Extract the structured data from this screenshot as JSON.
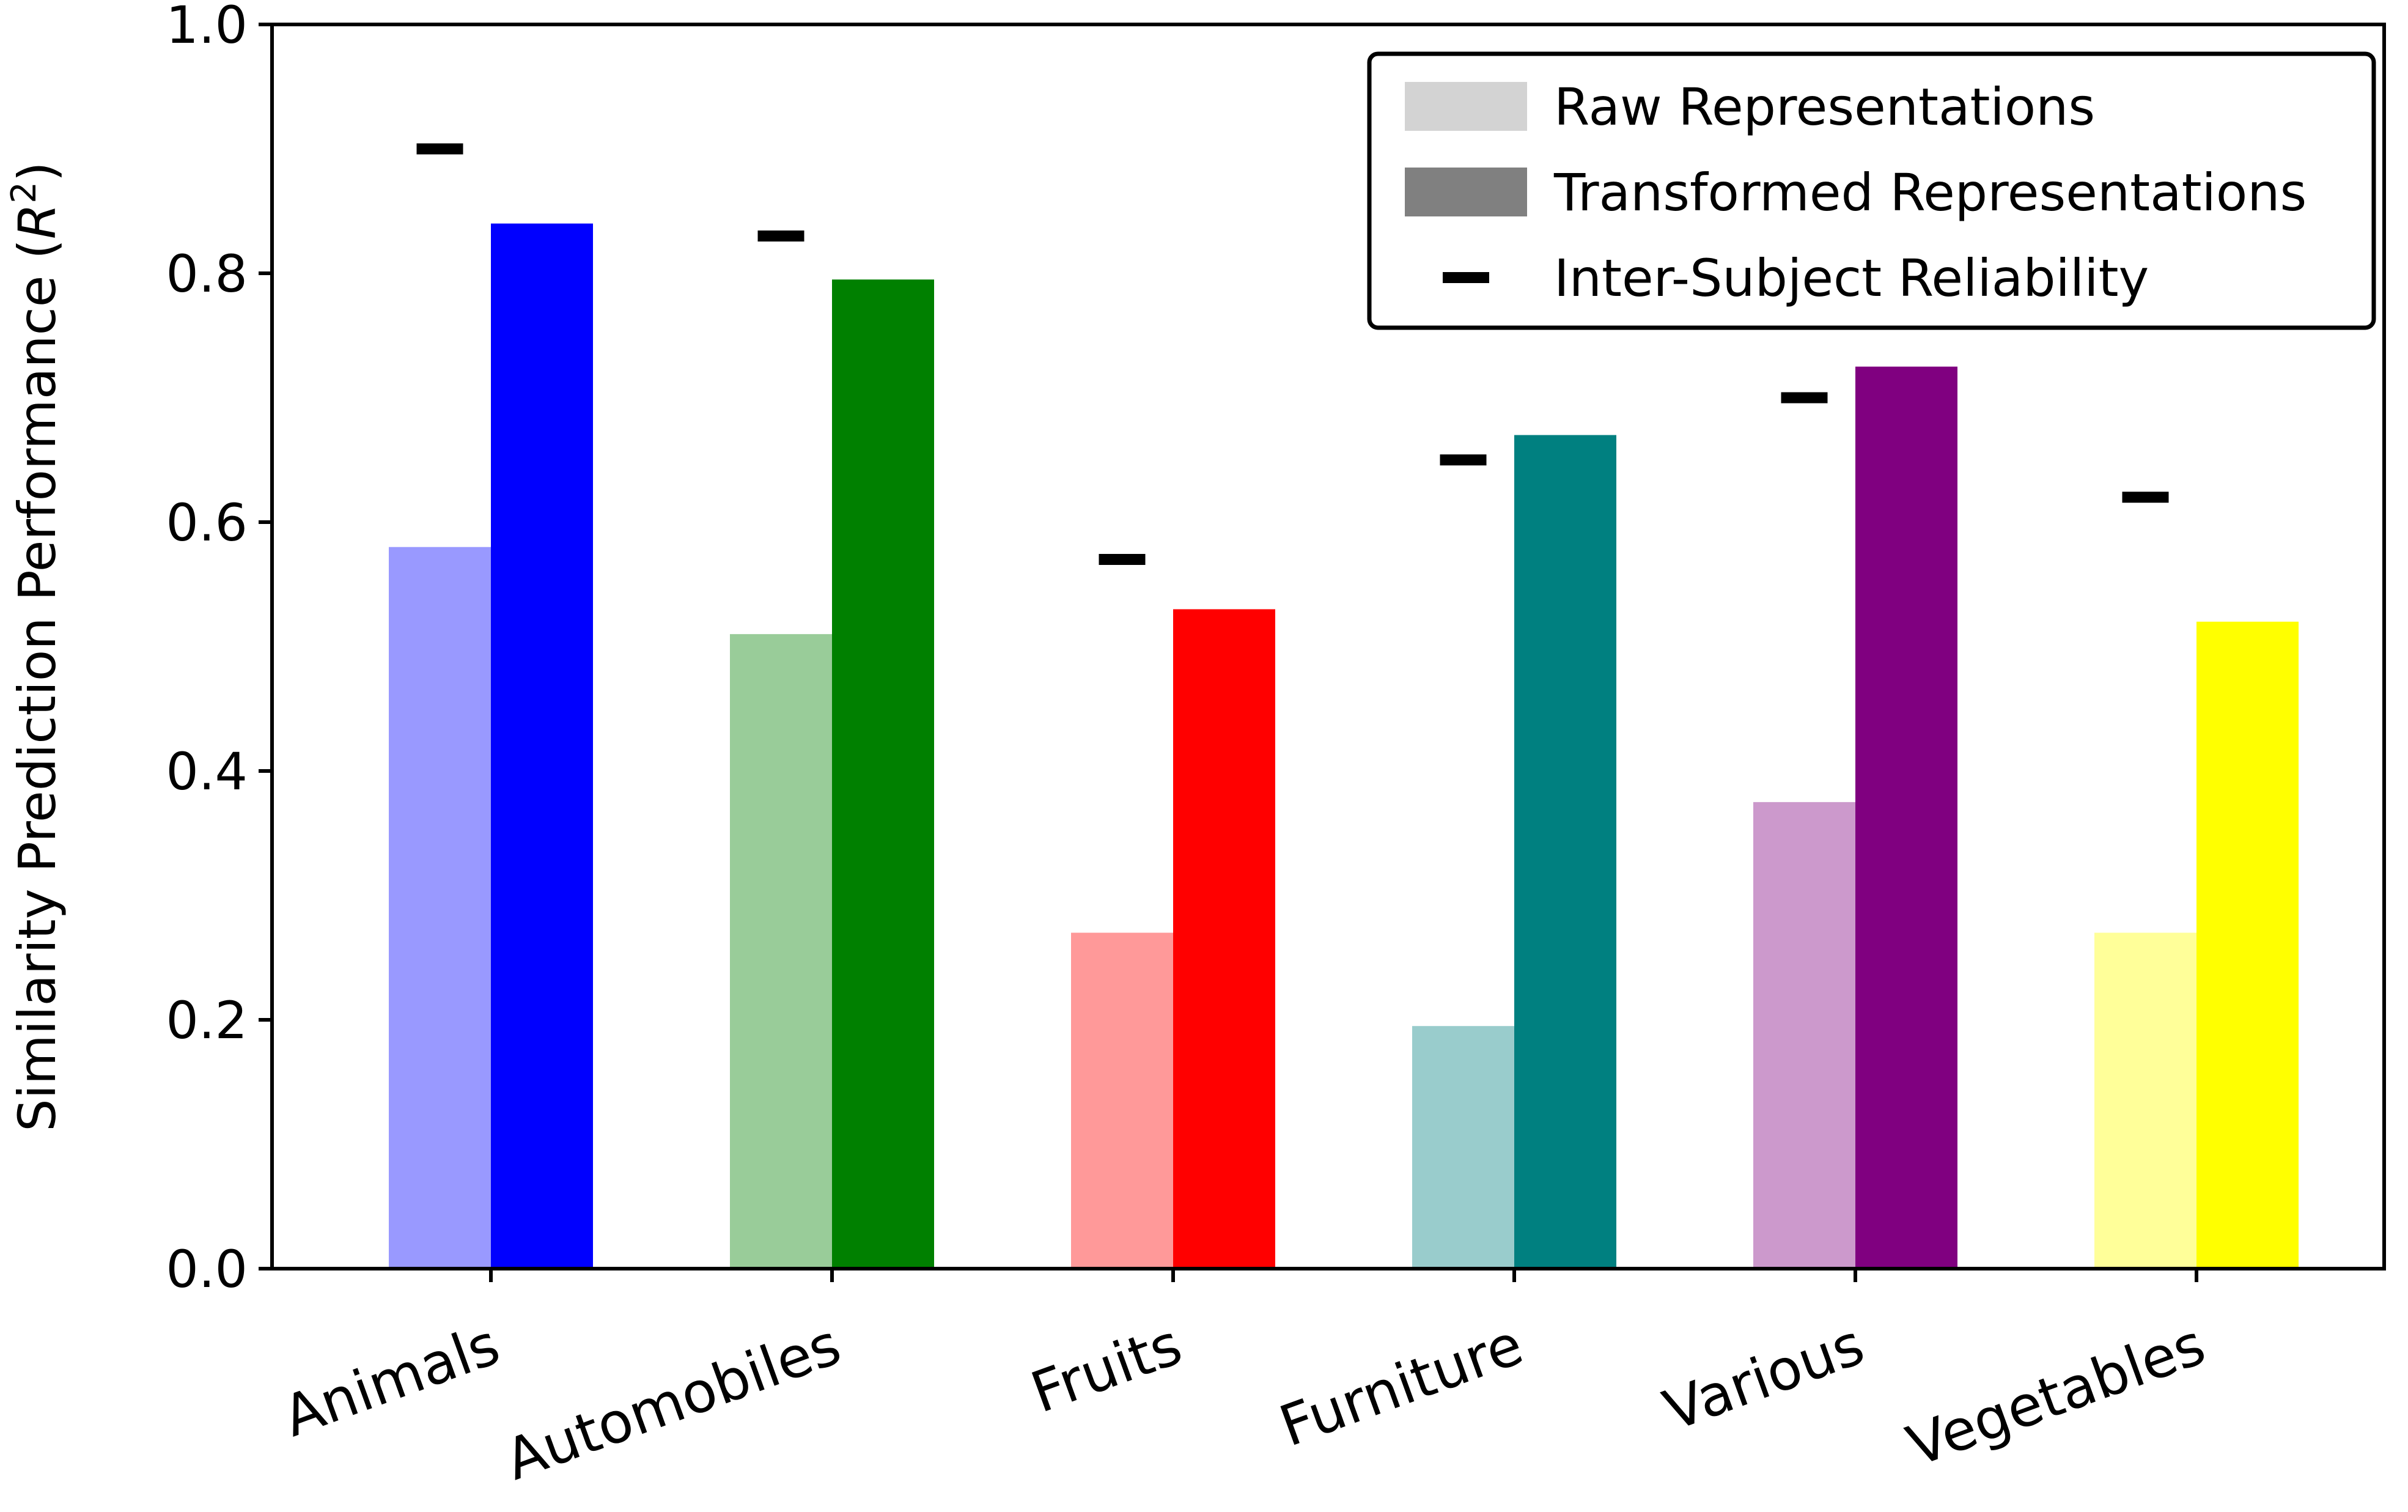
{
  "chart_data": {
    "type": "bar",
    "categories": [
      "Animals",
      "Automobiles",
      "Fruits",
      "Furniture",
      "Various",
      "Vegetables"
    ],
    "series": [
      {
        "name": "Raw Representations",
        "values": [
          0.58,
          0.51,
          0.27,
          0.195,
          0.375,
          0.27
        ],
        "colors": [
          "#9999ff",
          "#99cc99",
          "#ff9999",
          "#99cccc",
          "#cc99cc",
          "#ffff99"
        ],
        "legend_color": "#d3d3d3"
      },
      {
        "name": "Transformed Representations",
        "values": [
          0.84,
          0.795,
          0.53,
          0.67,
          0.725,
          0.52
        ],
        "colors": [
          "#0000ff",
          "#008000",
          "#ff0000",
          "#008080",
          "#800080",
          "#ffff00"
        ],
        "legend_color": "#808080"
      }
    ],
    "markers": {
      "name": "Inter-Subject Reliability",
      "values": [
        0.9,
        0.83,
        0.57,
        0.65,
        0.7,
        0.62
      ],
      "color": "#000000"
    },
    "ylabel": "Similarity Prediction Performance (R²)",
    "ylabel_main": "Similarity Prediction Performance (",
    "ylabel_var": "R",
    "ylabel_sup": "2",
    "ylabel_close": ")",
    "ylim": [
      0,
      1.0
    ],
    "yticks": [
      "0.0",
      "0.2",
      "0.4",
      "0.6",
      "0.8",
      "1.0"
    ],
    "legend_position": "top-right",
    "grid": false
  }
}
